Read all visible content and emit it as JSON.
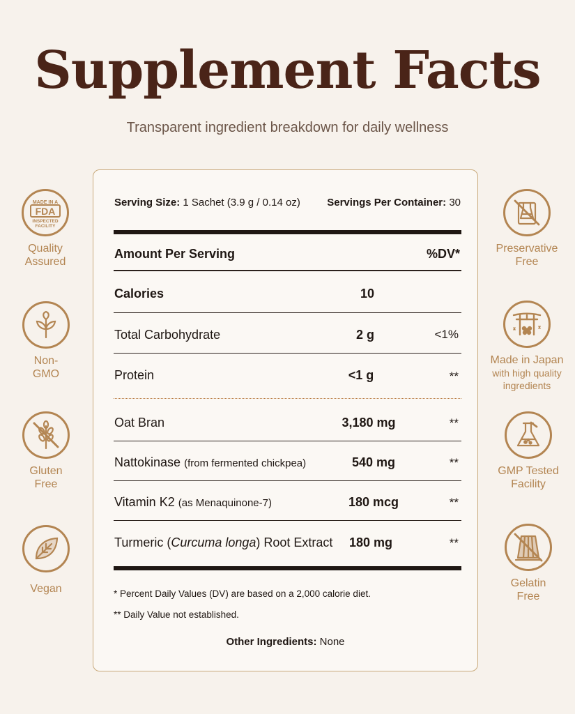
{
  "header": {
    "title": "Supplement Facts",
    "subtitle": "Transparent ingredient breakdown for daily wellness"
  },
  "facts": {
    "serving_size_label": "Serving Size:",
    "serving_size_value": "1 Sachet (3.9 g / 0.14 oz)",
    "servings_label": "Servings Per Container:",
    "servings_value": "30",
    "amount_header": "Amount Per Serving",
    "dv_header": "%DV*",
    "rows": [
      {
        "name": "Calories",
        "amount": "10",
        "dv": ""
      },
      {
        "name": "Total Carbohydrate",
        "amount": "2 g",
        "dv": "<1%"
      },
      {
        "name": "Protein",
        "amount": "<1 g",
        "dv": "**"
      },
      {
        "name": "Oat Bran",
        "amount": "3,180 mg",
        "dv": "**"
      },
      {
        "name": "Nattokinase",
        "name_note": "(from fermented chickpea)",
        "amount": "540 mg",
        "dv": "**"
      },
      {
        "name": "Vitamin K2",
        "name_note": "(as Menaquinone-7)",
        "amount": "180 mcg",
        "dv": "**"
      },
      {
        "name": "Turmeric (",
        "name_italic": "Curcuma longa",
        "name_suffix": ") Root Extract",
        "amount": "180 mg",
        "dv": "**"
      }
    ],
    "footnote_1": "* Percent Daily Values (DV) are based on a 2,000 calorie diet.",
    "footnote_2": "** Daily Value not established.",
    "other_label": "Other Ingredients:",
    "other_value": "None"
  },
  "badges_left": [
    {
      "icon": "fda-badge-icon",
      "line1": "Quality",
      "line2": "Assured",
      "emblem": [
        "MADE IN A",
        "FDA",
        "INSPECTED",
        "FACILITY"
      ]
    },
    {
      "icon": "leaf-sprout-icon",
      "line1": "Non-",
      "line2": "GMO"
    },
    {
      "icon": "wheat-crossed-icon",
      "line1": "Gluten",
      "line2": "Free"
    },
    {
      "icon": "leaf-icon",
      "line1": "Vegan",
      "line2": ""
    }
  ],
  "badges_right": [
    {
      "icon": "flask-crossed-icon",
      "line1": "Preservative",
      "line2": "Free"
    },
    {
      "icon": "torii-gate-icon",
      "line1": "Made in Japan",
      "line2": "with high quality",
      "line3": "ingredients"
    },
    {
      "icon": "lab-flask-icon",
      "line1": "GMP Tested",
      "line2": "Facility"
    },
    {
      "icon": "gelatin-crossed-icon",
      "line1": "Gelatin",
      "line2": "Free"
    }
  ],
  "colors": {
    "accent": "#b38552",
    "title": "#4a2418",
    "background": "#f7f2ec"
  }
}
